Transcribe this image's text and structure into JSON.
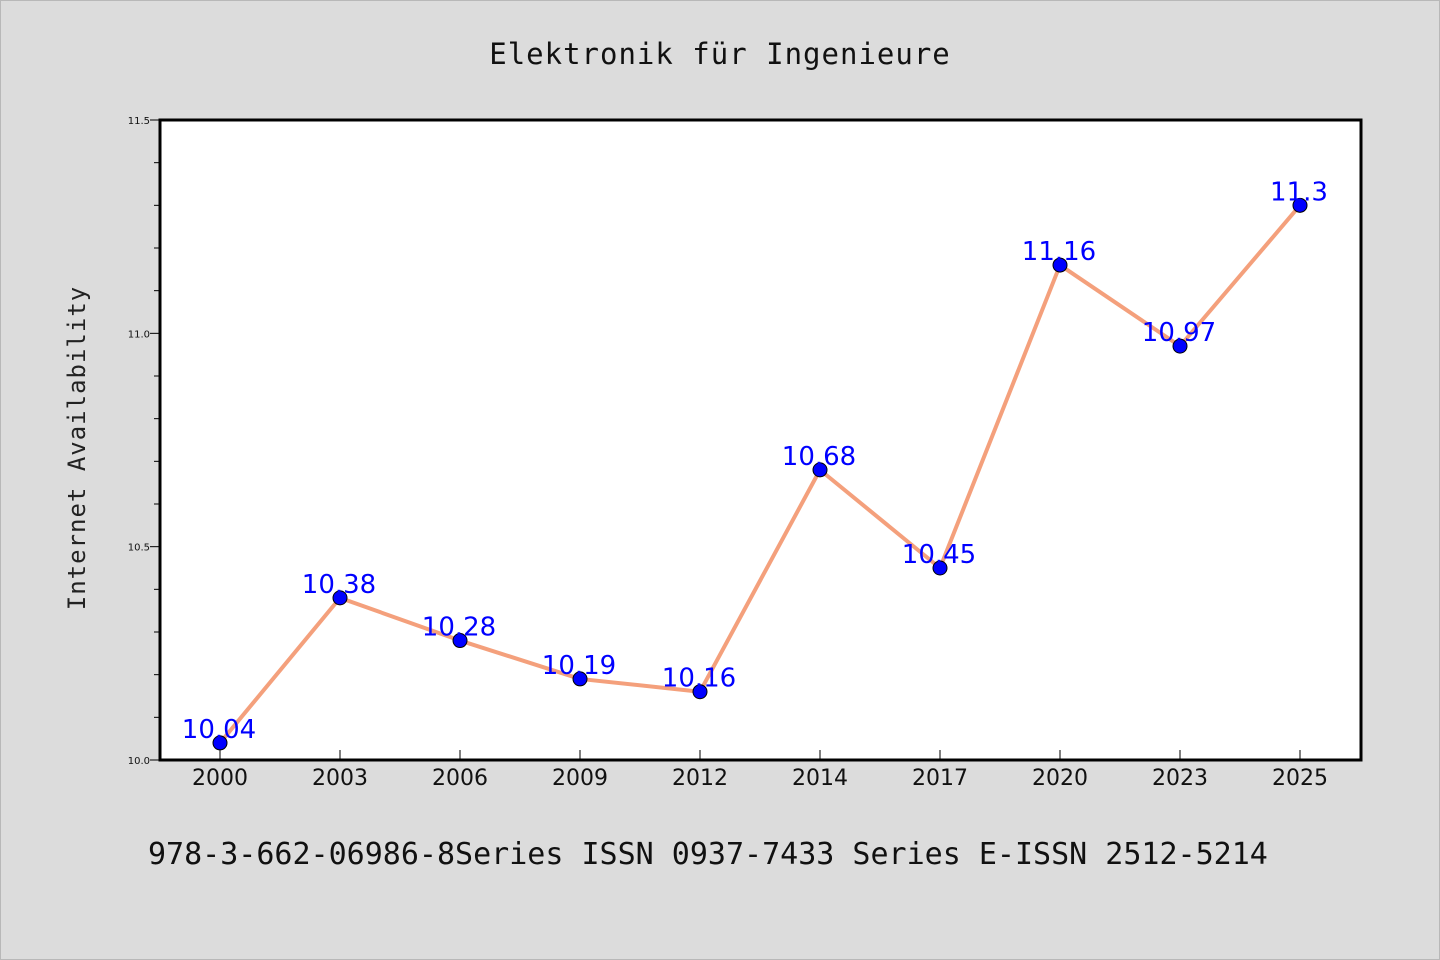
{
  "chart_data": {
    "type": "line",
    "title": "Elektronik für Ingenieure",
    "xlabel": "",
    "ylabel": "Internet Availability",
    "categories": [
      "2000",
      "2003",
      "2006",
      "2009",
      "2012",
      "2014",
      "2017",
      "2020",
      "2023",
      "2025"
    ],
    "series": [
      {
        "values": [
          10.04,
          10.38,
          10.28,
          10.19,
          10.16,
          10.68,
          10.45,
          11.16,
          10.97,
          11.3
        ],
        "data_labels": [
          "10.04",
          "10.38",
          "10.28",
          "10.19",
          "10.16",
          "10.68",
          "10.45",
          "11.16",
          "10.97",
          "11.3"
        ],
        "line_color": "#f4a07c",
        "marker_color": "#0000ff"
      }
    ],
    "ylim": [
      10.0,
      11.5
    ],
    "y_ticks": [
      "10.0",
      "10.5",
      "11.0",
      "11.5"
    ],
    "grid": false,
    "legend": "none"
  },
  "footer": {
    "text": "978-3-662-06986-8Series ISSN 0937-7433 Series E-ISSN 2512-5214"
  },
  "colors": {
    "background": "#dcdcdc",
    "plot_background": "#ffffff",
    "label_color": "#0000ff"
  }
}
